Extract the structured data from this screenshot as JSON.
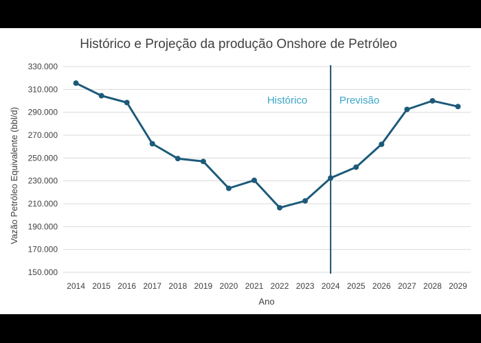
{
  "chart_data": {
    "type": "line",
    "title": "Histórico e Projeção da produção Onshore de Petróleo",
    "xlabel": "Ano",
    "ylabel": "Vazão Petróleo Equivalente (bbl/d)",
    "ylim": [
      150000,
      330000
    ],
    "yticks": [
      150000,
      170000,
      190000,
      210000,
      230000,
      250000,
      270000,
      290000,
      310000,
      330000
    ],
    "ytick_labels": [
      "150.000",
      "170.000",
      "190.000",
      "210.000",
      "230.000",
      "250.000",
      "270.000",
      "290.000",
      "310.000",
      "330.000"
    ],
    "grid": true,
    "categories": [
      "2014",
      "2015",
      "2016",
      "2017",
      "2018",
      "2019",
      "2020",
      "2021",
      "2022",
      "2023",
      "2024",
      "2025",
      "2026",
      "2027",
      "2028",
      "2029"
    ],
    "series": [
      {
        "values": [
          315500,
          304500,
          298500,
          262500,
          249500,
          247000,
          223500,
          230500,
          206500,
          212500,
          232500,
          242000,
          262000,
          292500,
          300000,
          295000
        ]
      }
    ],
    "divider_at": "2024",
    "annotations": {
      "left": "Histórico",
      "right": "Previsão"
    },
    "colors": {
      "line": "#1c5a7a",
      "divider": "#1c4f6e",
      "annotation": "#3aa6c9",
      "grid": "#d9d9d9",
      "text": "#404040"
    }
  }
}
